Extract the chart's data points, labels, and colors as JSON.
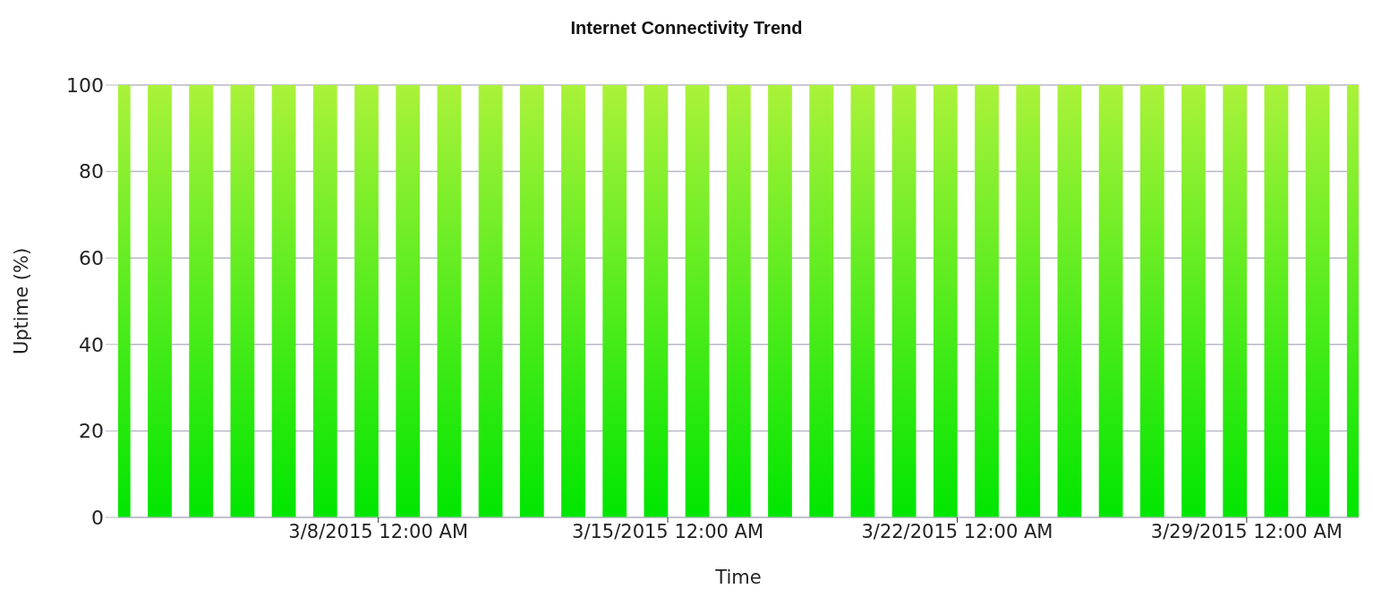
{
  "chart_data": {
    "type": "bar",
    "title": "Internet Connectivity Trend",
    "xlabel": "Time",
    "ylabel": "Uptime (%)",
    "x": [
      "2015-03-01T17:00",
      "2015-03-02T17:00",
      "2015-03-03T17:00",
      "2015-03-04T17:00",
      "2015-03-05T17:00",
      "2015-03-06T17:00",
      "2015-03-07T17:00",
      "2015-03-08T17:00",
      "2015-03-09T17:00",
      "2015-03-10T17:00",
      "2015-03-11T17:00",
      "2015-03-12T17:00",
      "2015-03-13T17:00",
      "2015-03-14T17:00",
      "2015-03-15T17:00",
      "2015-03-16T17:00",
      "2015-03-17T17:00",
      "2015-03-18T17:00",
      "2015-03-19T17:00",
      "2015-03-20T17:00",
      "2015-03-21T17:00",
      "2015-03-22T17:00",
      "2015-03-23T17:00",
      "2015-03-24T17:00",
      "2015-03-25T17:00",
      "2015-03-26T17:00",
      "2015-03-27T17:00",
      "2015-03-28T17:00",
      "2015-03-29T17:00",
      "2015-03-30T17:00",
      "2015-03-31T17:00"
    ],
    "values": [
      100,
      100,
      100,
      100,
      100,
      100,
      100,
      100,
      100,
      100,
      100,
      100,
      100,
      100,
      100,
      100,
      100,
      100,
      100,
      100,
      100,
      100,
      100,
      100,
      100,
      100,
      100,
      100,
      100,
      100,
      100
    ],
    "color": "#00e600",
    "xlim": [
      "2015-03-01T17:00",
      "2015-03-31T17:00"
    ],
    "xticks": [
      {
        "value": "2015-03-08",
        "label": "3/8/2015 12:00 AM"
      },
      {
        "value": "2015-03-15",
        "label": "3/15/2015 12:00 AM"
      },
      {
        "value": "2015-03-22",
        "label": "3/22/2015 12:00 AM"
      },
      {
        "value": "2015-03-29",
        "label": "3/29/2015 12:00 AM"
      }
    ],
    "ylim": [
      0,
      100
    ],
    "yticks": [
      0,
      20,
      40,
      60,
      80,
      100
    ],
    "grid": "y",
    "legend": false
  }
}
